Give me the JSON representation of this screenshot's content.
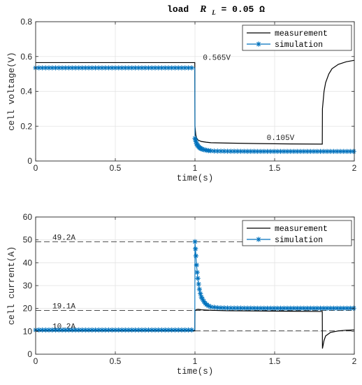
{
  "chart_data": [
    {
      "type": "line",
      "title": {
        "prefix": "load",
        "symbol": "R",
        "subscript": "L",
        "suffix": " = 0.05 Ω"
      },
      "xlabel": "time(s)",
      "ylabel": "cell voltage(V)",
      "xlim": [
        0,
        2
      ],
      "ylim": [
        0,
        0.8
      ],
      "xticks": [
        0,
        0.5,
        1,
        1.5,
        2
      ],
      "xtick_labels": [
        "0",
        "0.5",
        "1",
        "1.5",
        "2"
      ],
      "yticks": [
        0,
        0.2,
        0.4,
        0.6,
        0.8
      ],
      "ytick_labels": [
        "0",
        "0.2",
        "0.4",
        "0.6",
        "0.8"
      ],
      "grid": true,
      "legend_position": "top-right",
      "series": [
        {
          "name": "measurement",
          "style": "line",
          "color": "#000000",
          "x": [
            0,
            0.999,
            1.0,
            1.005,
            1.01,
            1.02,
            1.04,
            1.07,
            1.1,
            1.2,
            1.4,
            1.6,
            1.799,
            1.8,
            1.81,
            1.82,
            1.84,
            1.86,
            1.9,
            1.95,
            2.0
          ],
          "y": [
            0.565,
            0.565,
            0.2,
            0.15,
            0.13,
            0.12,
            0.112,
            0.108,
            0.105,
            0.103,
            0.1,
            0.098,
            0.097,
            0.3,
            0.4,
            0.45,
            0.5,
            0.53,
            0.555,
            0.57,
            0.578
          ]
        },
        {
          "name": "simulation",
          "style": "line-star",
          "color": "#0072BD",
          "x": [
            0,
            0.999,
            1.0,
            1.01,
            1.02,
            1.03,
            1.05,
            1.08,
            1.12,
            1.2,
            1.4,
            1.6,
            1.8,
            2.0
          ],
          "y": [
            0.535,
            0.535,
            0.13,
            0.1,
            0.085,
            0.075,
            0.066,
            0.06,
            0.057,
            0.056,
            0.055,
            0.055,
            0.055,
            0.055
          ]
        }
      ],
      "annotations": [
        {
          "text": "0.565V",
          "x": 1.05,
          "y": 0.565
        },
        {
          "text": "0.105V",
          "x": 1.45,
          "y": 0.105
        }
      ]
    },
    {
      "type": "line",
      "title": "",
      "xlabel": "time(s)",
      "ylabel": "cell current(A)",
      "xlim": [
        0,
        2
      ],
      "ylim": [
        0,
        60
      ],
      "xticks": [
        0,
        0.5,
        1,
        1.5,
        2
      ],
      "xtick_labels": [
        "0",
        "0.5",
        "1",
        "1.5",
        "2"
      ],
      "yticks": [
        0,
        10,
        20,
        30,
        40,
        50,
        60
      ],
      "ytick_labels": [
        "0",
        "10",
        "20",
        "30",
        "40",
        "50",
        "60"
      ],
      "grid": true,
      "legend_position": "top-right",
      "series": [
        {
          "name": "measurement",
          "style": "line",
          "color": "#000000",
          "x": [
            0,
            0.999,
            1.0,
            1.01,
            1.02,
            1.04,
            1.07,
            1.1,
            1.2,
            1.4,
            1.6,
            1.799,
            1.8,
            1.81,
            1.82,
            1.85,
            1.9,
            1.95,
            2.0
          ],
          "y": [
            10.2,
            10.2,
            19.1,
            19.5,
            19.6,
            19.4,
            19.3,
            19.2,
            19.0,
            18.9,
            18.8,
            18.7,
            2.5,
            6.0,
            8.0,
            9.5,
            10.2,
            10.5,
            10.6
          ]
        },
        {
          "name": "simulation",
          "style": "line-star",
          "color": "#0072BD",
          "x": [
            0,
            0.999,
            1.0,
            1.005,
            1.01,
            1.015,
            1.02,
            1.03,
            1.04,
            1.06,
            1.08,
            1.1,
            1.15,
            1.2,
            1.4,
            1.6,
            1.8,
            2.0
          ],
          "y": [
            10.6,
            10.6,
            49.2,
            44,
            39,
            35,
            32,
            27.5,
            25,
            22.5,
            21.3,
            20.7,
            20.3,
            20.2,
            20.1,
            20.1,
            20.1,
            20.1
          ]
        }
      ],
      "reference_lines": [
        {
          "text": "49.2A",
          "y": 49.2
        },
        {
          "text": "19.1A",
          "y": 19.1
        },
        {
          "text": "10.2A",
          "y": 10.2
        }
      ]
    }
  ]
}
